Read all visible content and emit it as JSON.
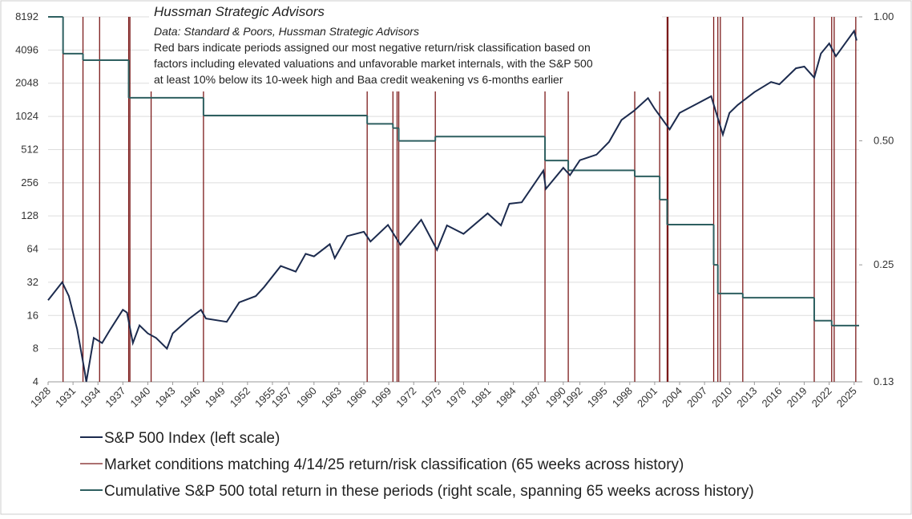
{
  "chart_data": {
    "type": "line",
    "title": "Hussman Strategic Advisors",
    "subtitle": "Data: Standard & Poors, Hussman Strategic Advisors",
    "annotation": [
      "Red bars indicate periods assigned our most negative return/risk classification based on",
      "factors including elevated valuations and unfavorable market internals, with the S&P 500",
      "at least 10% below its 10-week high and Baa credit weakening vs 6-months earlier"
    ],
    "xlim": [
      1928,
      2025.6
    ],
    "xticks": [
      1928,
      1931,
      1934,
      1937,
      1940,
      1943,
      1946,
      1949,
      1952,
      1955,
      1957,
      1960,
      1963,
      1966,
      1969,
      1972,
      1975,
      1978,
      1981,
      1984,
      1987,
      1990,
      1992,
      1995,
      1998,
      2001,
      2004,
      2007,
      2010,
      2013,
      2016,
      2019,
      2022,
      2025
    ],
    "ylim": [
      4,
      8192
    ],
    "log_y": true,
    "yticks": [
      4,
      8,
      16,
      32,
      64,
      128,
      256,
      512,
      1024,
      2048,
      4096,
      8192
    ],
    "y2lim": [
      0.13,
      1.0
    ],
    "log_y2": true,
    "y2ticks": [
      {
        "value": 0.13,
        "label": "0.13"
      },
      {
        "value": 0.25,
        "label": "0.25"
      },
      {
        "value": 0.5,
        "label": "0.50"
      },
      {
        "value": 1.0,
        "label": "1.00"
      }
    ],
    "grid": true,
    "series": [
      {
        "name": "S&P 500 Index (left scale)",
        "color": "#1c2b4e",
        "style": "line",
        "x": [
          1928,
          1929.7,
          1930.5,
          1931.5,
          1932.4,
          1932.6,
          1933.5,
          1934.5,
          1935.5,
          1937,
          1937.5,
          1938.2,
          1939,
          1940,
          1941,
          1942.3,
          1943,
          1945,
          1946.4,
          1947,
          1949.5,
          1951,
          1953,
          1954,
          1956,
          1957.8,
          1959,
          1960,
          1961.9,
          1962.5,
          1964,
          1966,
          1966.8,
          1968.9,
          1970.4,
          1972.9,
          1974.8,
          1976,
          1978,
          1980.9,
          1982.5,
          1983.5,
          1985,
          1987.6,
          1987.9,
          1990,
          1990.8,
          1992,
          1994,
          1995.5,
          1997,
          1998.5,
          2000.2,
          2001,
          2002.8,
          2004,
          2007.8,
          2009.2,
          2010,
          2011,
          2013,
          2015,
          2016,
          2018,
          2019,
          2020.2,
          2021,
          2022,
          2022.8,
          2024,
          2025,
          2025.3
        ],
        "values": [
          22,
          32,
          24,
          12,
          5,
          4,
          10,
          9,
          12,
          18,
          17,
          9,
          13,
          11,
          10,
          8,
          11,
          15,
          18,
          15,
          14,
          21,
          24,
          29,
          45,
          40,
          58,
          55,
          71,
          53,
          84,
          92,
          75,
          106,
          70,
          118,
          63,
          105,
          88,
          135,
          105,
          165,
          170,
          330,
          225,
          350,
          300,
          410,
          460,
          600,
          950,
          1150,
          1500,
          1200,
          780,
          1100,
          1560,
          700,
          1100,
          1300,
          1700,
          2100,
          2000,
          2800,
          2900,
          2300,
          3800,
          4700,
          3600,
          4800,
          6100,
          5000
        ]
      },
      {
        "name": "Market conditions matching 4/14/25 return/risk classification (65 weeks across history)",
        "color": "#7b1a1a",
        "style": "vbar",
        "x": [
          1929.8,
          1932.2,
          1934.2,
          1937.7,
          1937.85,
          1940.4,
          1946.7,
          1966.4,
          1969.5,
          1970.0,
          1970.2,
          1974.6,
          1987.8,
          1990.6,
          1998.6,
          2001.6,
          2002.5,
          2002.6,
          2008.1,
          2008.6,
          2008.9,
          2011.6,
          2020.2,
          2022.3,
          2022.6,
          2025.2
        ]
      },
      {
        "name": "Cumulative S&P 500 total return in these periods (right scale, spanning 65 weeks across history)",
        "color": "#2e5f60",
        "style": "step",
        "axis": "y2",
        "x": [
          1928,
          1929.8,
          1932.2,
          1937.7,
          1946.7,
          1966.4,
          1969.5,
          1970.2,
          1974.6,
          1987.8,
          1990.6,
          1998.6,
          2001.6,
          2002.5,
          2008.1,
          2008.6,
          2011.6,
          2020.2,
          2022.3,
          2025.6
        ],
        "values": [
          1.0,
          0.814,
          0.785,
          0.636,
          0.576,
          0.55,
          0.537,
          0.5,
          0.512,
          0.448,
          0.424,
          0.41,
          0.36,
          0.313,
          0.25,
          0.213,
          0.208,
          0.183,
          0.178,
          0.178
        ]
      }
    ]
  }
}
